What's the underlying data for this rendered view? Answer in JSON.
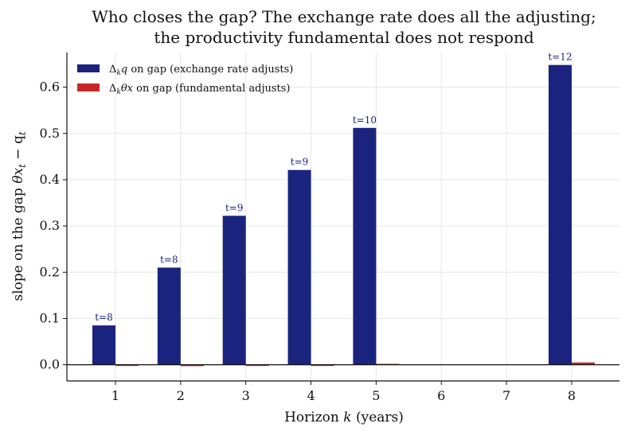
{
  "chart_data": {
    "type": "bar",
    "title": [
      "Who closes the gap? The exchange rate does all the adjusting;",
      "the productivity fundamental does not respond"
    ],
    "xlabel": {
      "pre": "Horizon ",
      "var": "k",
      "post": " (years)"
    },
    "ylabel": {
      "pre": "slope on the gap ",
      "math": "θx",
      "sub1": "t",
      "mid": " − q",
      "sub2": "t"
    },
    "categories": [
      1,
      2,
      3,
      4,
      5,
      6,
      7,
      8
    ],
    "ylim": [
      -0.035,
      0.675
    ],
    "yticks": [
      0.0,
      0.1,
      0.2,
      0.3,
      0.4,
      0.5,
      0.6
    ],
    "ytick_labels": [
      "0.0",
      "0.1",
      "0.2",
      "0.3",
      "0.4",
      "0.5",
      "0.6"
    ],
    "grid": true,
    "legend_position": "top-left",
    "series": [
      {
        "legend": {
          "delta": "Δ",
          "sub": "k",
          "var": "q",
          "rest": " on gap (exchange rate adjusts)"
        },
        "color": "#1a237e",
        "values": [
          0.085,
          0.21,
          0.322,
          0.421,
          0.512,
          null,
          null,
          0.648
        ]
      },
      {
        "legend": {
          "delta": "Δ",
          "sub": "k",
          "var": "θx",
          "rest": " on gap (fundamental adjusts)"
        },
        "color": "#c62828",
        "values": [
          -0.002,
          -0.003,
          -0.002,
          -0.001,
          0.002,
          null,
          null,
          0.005
        ]
      }
    ],
    "data_labels": [
      "t=8",
      "t=8",
      "t=9",
      "t=9",
      "t=10",
      "",
      "",
      "t=12"
    ]
  }
}
